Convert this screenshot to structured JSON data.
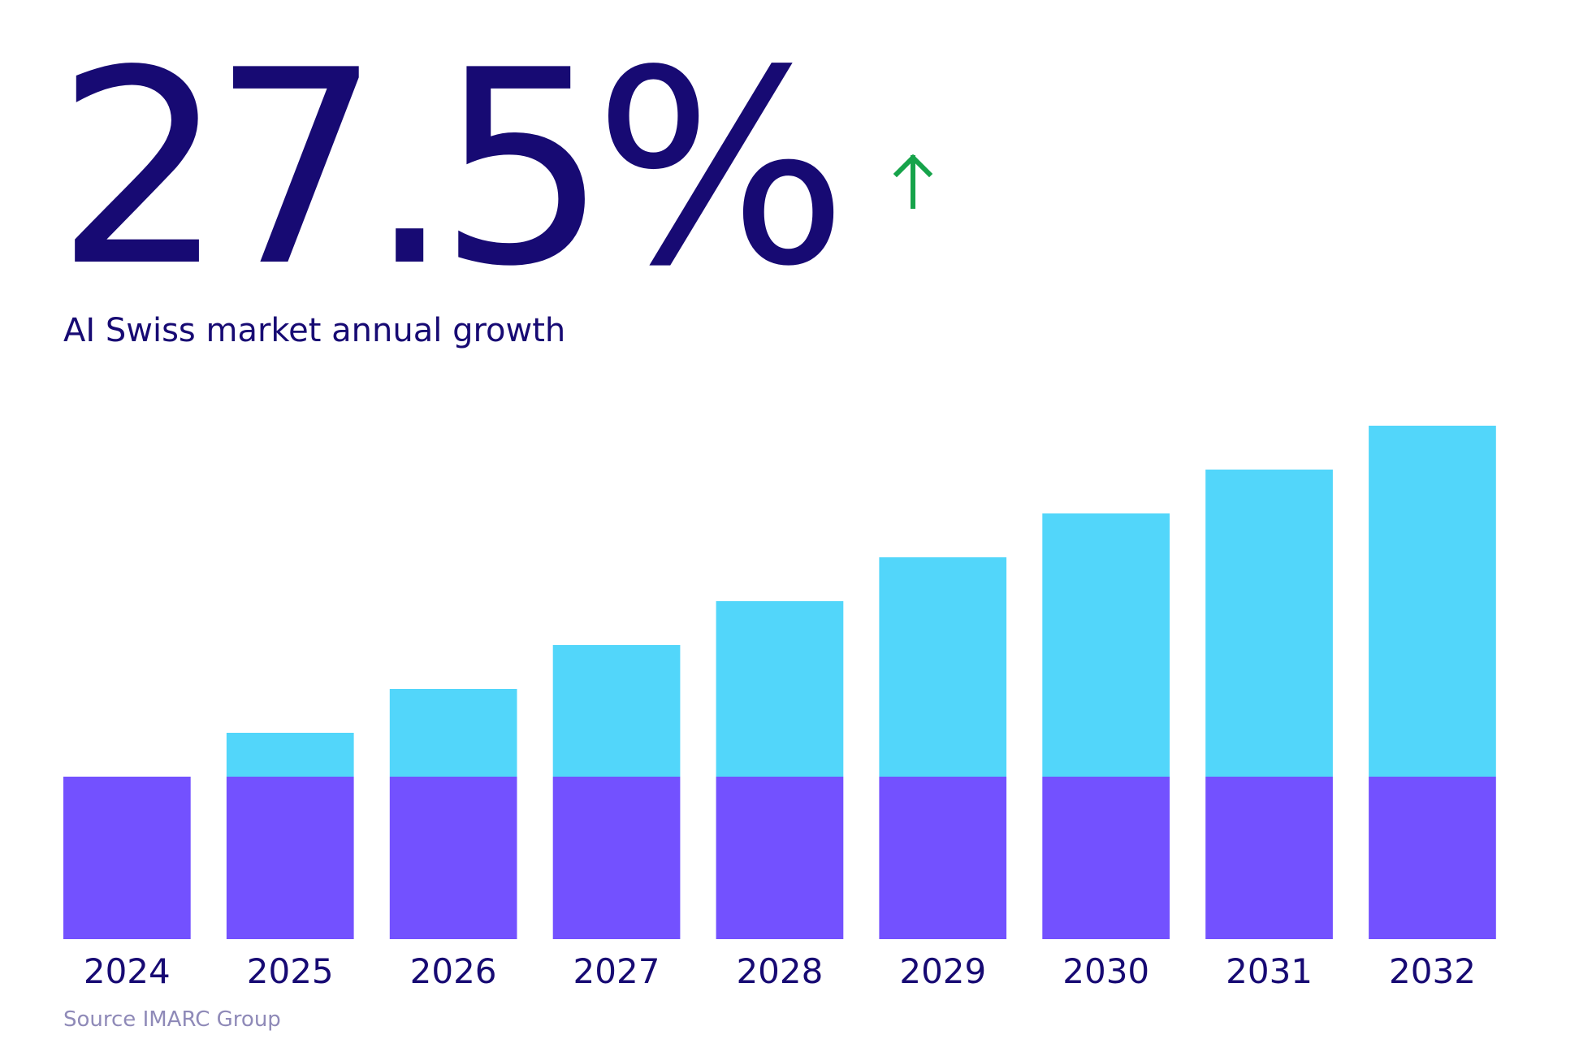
{
  "headline": {
    "value": "27.5%",
    "trend_icon": "arrow-up-icon",
    "subtitle": "AI Swiss market annual growth"
  },
  "source": "Source IMARC Group",
  "colors": {
    "text": "#170a73",
    "trend": "#16a34a",
    "base_segment": "#7351ff",
    "growth_segment": "#52d6fa",
    "source_text": "#8f8ab8"
  },
  "chart_data": {
    "type": "bar",
    "stacked": true,
    "categories": [
      "2024",
      "2025",
      "2026",
      "2027",
      "2028",
      "2029",
      "2030",
      "2031",
      "2032"
    ],
    "series": [
      {
        "values": [
          200,
          200,
          200,
          200,
          200,
          200,
          200,
          200,
          200
        ],
        "color": "#7351ff"
      },
      {
        "values": [
          0,
          54,
          108,
          162,
          216,
          270,
          324,
          378,
          432
        ],
        "color": "#52d6fa"
      }
    ],
    "title": "",
    "xlabel": "",
    "ylabel": "",
    "ylim": [
      0,
      632
    ],
    "grid": false,
    "legend": "none"
  }
}
